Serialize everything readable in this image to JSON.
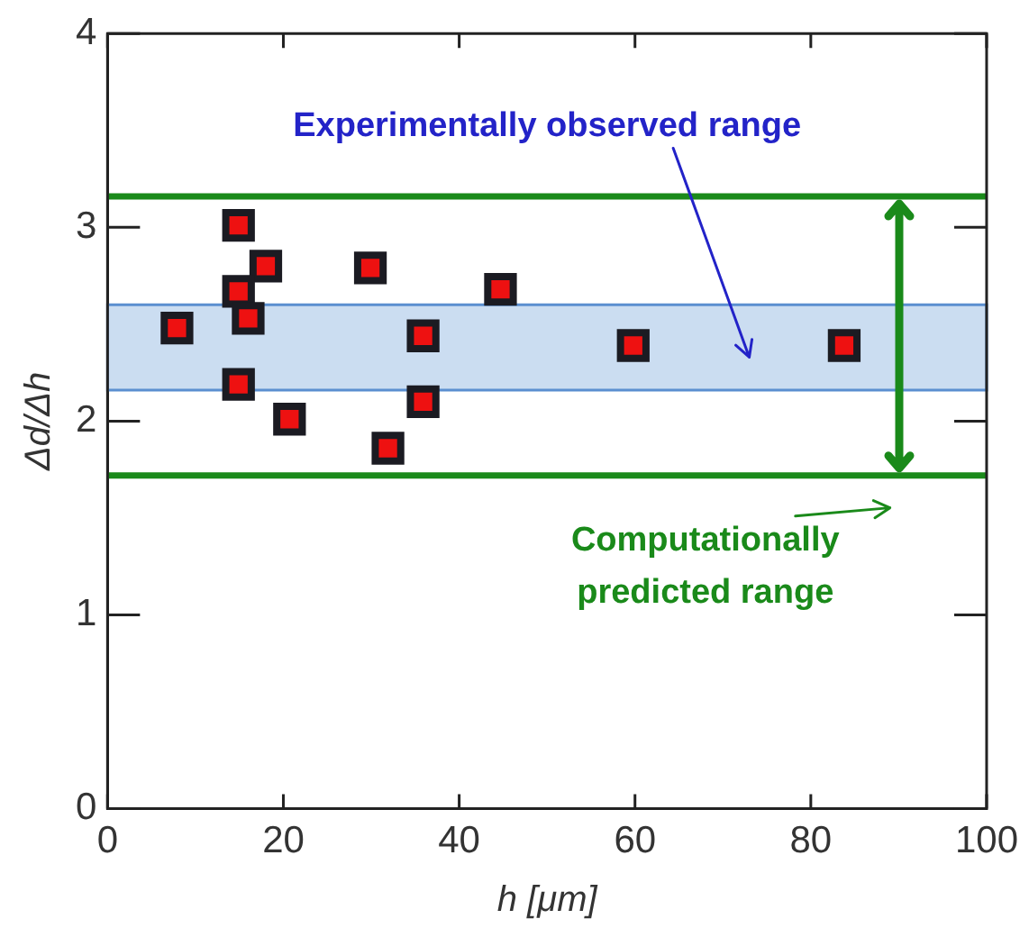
{
  "chart_data": {
    "type": "scatter",
    "xlabel": "h [μm]",
    "ylabel": "Δd/Δh",
    "x": [
      7.9,
      14.9,
      18.0,
      14.9,
      16.0,
      14.9,
      20.7,
      29.9,
      35.9,
      35.9,
      31.9,
      44.7,
      59.8,
      83.8
    ],
    "series": [
      {
        "color": "#ee1111",
        "values": [
          2.48,
          3.01,
          2.8,
          2.67,
          2.53,
          2.19,
          2.01,
          2.79,
          2.44,
          2.1,
          1.86,
          2.68,
          2.39,
          2.39
        ]
      }
    ],
    "marker": "square",
    "xlim": [
      0,
      100
    ],
    "xticks": [
      0,
      20,
      40,
      60,
      80,
      100
    ],
    "ylim": [
      0,
      4
    ],
    "yticks": [
      0,
      1,
      2,
      3,
      4
    ],
    "grid": false,
    "legend": false,
    "bands": [
      {
        "axis": "y",
        "from": 2.16,
        "to": 2.6,
        "label": "Experimentally observed range",
        "color": "#a9c6e8"
      }
    ],
    "ref_lines": [
      {
        "axis": "y",
        "value": 3.16,
        "color": "#1a8a1a"
      },
      {
        "axis": "y",
        "value": 1.72,
        "color": "#1a8a1a"
      }
    ],
    "annotations": [
      "Computationally predicted range"
    ]
  }
}
